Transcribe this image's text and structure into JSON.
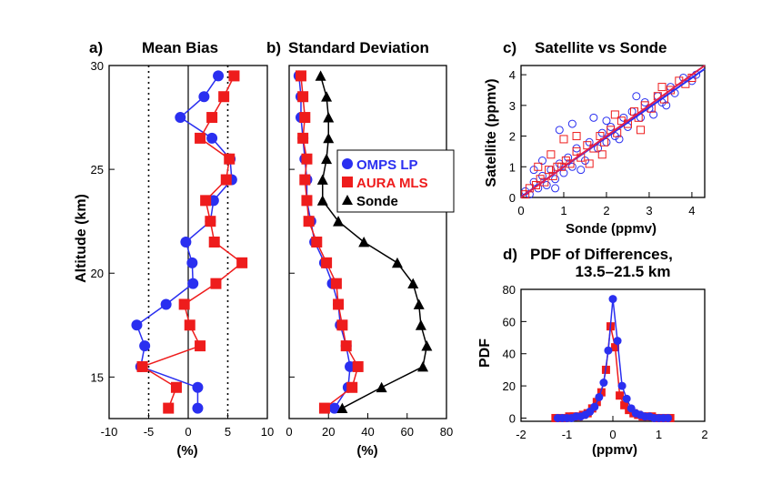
{
  "colors": {
    "omps": "#2a2ff0",
    "mls": "#ee1c1c",
    "sonde": "#000000",
    "fit": "#e0204f"
  },
  "chart_data": [
    {
      "id": "a",
      "type": "line",
      "panel_label": "a)",
      "title": "Mean Bias",
      "xlabel": "(%)",
      "ylabel": "Altitude (km)",
      "xlim": [
        -10,
        10
      ],
      "ylim": [
        13,
        30
      ],
      "xticks": [
        -10,
        -5,
        0,
        5,
        10
      ],
      "yticks": [
        15,
        20,
        25,
        30
      ],
      "vlines": [
        {
          "x": -5,
          "style": "dotted"
        },
        {
          "x": 0,
          "style": "solid"
        },
        {
          "x": 5,
          "style": "dotted"
        }
      ],
      "series": [
        {
          "name": "OMPS LP",
          "key": "omps",
          "marker": "circle",
          "x": [
            1.2,
            1.2,
            -6.0,
            -5.5,
            -6.5,
            -2.8,
            0.6,
            0.5,
            -0.3,
            2.8,
            3.2,
            5.5,
            5.3,
            3.0,
            -1.0,
            2.0,
            3.8
          ],
          "y": [
            13.5,
            14.5,
            15.5,
            16.5,
            17.5,
            18.5,
            19.5,
            20.5,
            21.5,
            22.5,
            23.5,
            24.5,
            25.5,
            26.5,
            27.5,
            28.5,
            29.5
          ]
        },
        {
          "name": "AURA MLS",
          "key": "mls",
          "marker": "square",
          "x": [
            -2.5,
            -1.5,
            -5.8,
            1.5,
            0.2,
            -0.5,
            3.5,
            6.8,
            3.3,
            2.8,
            2.2,
            4.8,
            5.2,
            1.5,
            3.0,
            4.5,
            5.8
          ],
          "y": [
            13.5,
            14.5,
            15.5,
            16.5,
            17.5,
            18.5,
            19.5,
            20.5,
            21.5,
            22.5,
            23.5,
            24.5,
            25.5,
            26.5,
            27.5,
            28.5,
            29.5
          ]
        }
      ]
    },
    {
      "id": "b",
      "type": "line",
      "panel_label": "b)",
      "title": "Standard Deviation",
      "xlabel": "(%)",
      "xlim": [
        0,
        80
      ],
      "ylim": [
        13,
        30
      ],
      "xticks": [
        0,
        20,
        40,
        60,
        80
      ],
      "series": [
        {
          "name": "OMPS LP",
          "key": "omps",
          "marker": "circle",
          "x": [
            23,
            30,
            31,
            29,
            26,
            25,
            22,
            18,
            13,
            11,
            9,
            9,
            8,
            7,
            6,
            6,
            5
          ],
          "y": [
            13.5,
            14.5,
            15.5,
            16.5,
            17.5,
            18.5,
            19.5,
            20.5,
            21.5,
            22.5,
            23.5,
            24.5,
            25.5,
            26.5,
            27.5,
            28.5,
            29.5
          ]
        },
        {
          "name": "AURA MLS",
          "key": "mls",
          "marker": "square",
          "x": [
            18,
            32,
            35,
            29,
            27,
            25,
            24,
            19,
            14,
            10,
            9,
            8,
            9,
            7,
            8,
            7,
            6
          ],
          "y": [
            13.5,
            14.5,
            15.5,
            16.5,
            17.5,
            18.5,
            19.5,
            20.5,
            21.5,
            22.5,
            23.5,
            24.5,
            25.5,
            26.5,
            27.5,
            28.5,
            29.5
          ]
        },
        {
          "name": "Sonde",
          "key": "sonde",
          "marker": "triangle",
          "x": [
            27,
            47,
            68,
            70,
            67,
            66,
            63,
            55,
            38,
            25,
            17,
            17,
            19,
            20,
            20,
            19,
            16
          ],
          "y": [
            13.5,
            14.5,
            15.5,
            16.5,
            17.5,
            18.5,
            19.5,
            20.5,
            21.5,
            22.5,
            23.5,
            24.5,
            25.5,
            26.5,
            27.5,
            28.5,
            29.5
          ]
        }
      ],
      "legend": {
        "position": "right",
        "entries": [
          "OMPS LP",
          "AURA MLS",
          "Sonde"
        ]
      }
    },
    {
      "id": "c",
      "type": "scatter",
      "panel_label": "c)",
      "title": "Satellite vs Sonde",
      "xlabel": "Sonde (ppmv)",
      "ylabel": "Satellite (ppmv)",
      "xlim": [
        0,
        4.3
      ],
      "ylim": [
        0,
        4.3
      ],
      "xticks": [
        0,
        1,
        2,
        3,
        4
      ],
      "yticks": [
        0,
        1,
        2,
        3,
        4
      ],
      "fit_lines": [
        {
          "key": "omps",
          "slope": 0.97,
          "intercept": 0.02
        },
        {
          "key": "fit",
          "slope": 1.0,
          "intercept": 0.0
        }
      ],
      "series": [
        {
          "name": "OMPS LP",
          "key": "omps",
          "marker": "open-circle",
          "x": [
            0.1,
            0.2,
            0.3,
            0.4,
            0.5,
            0.6,
            0.7,
            0.8,
            0.9,
            1.0,
            1.1,
            1.2,
            1.3,
            1.5,
            1.6,
            1.8,
            1.9,
            2.0,
            2.1,
            2.2,
            2.4,
            2.5,
            2.6,
            2.8,
            2.9,
            3.0,
            3.2,
            3.3,
            3.5,
            3.6,
            3.8,
            4.0,
            4.1,
            0.5,
            0.9,
            1.4,
            1.7,
            2.3,
            2.7,
            3.1,
            3.4,
            0.3,
            1.2,
            2.0,
            0.8
          ],
          "y": [
            0.2,
            0.1,
            0.5,
            0.3,
            0.7,
            0.4,
            0.9,
            0.6,
            1.1,
            0.8,
            1.3,
            1.0,
            1.6,
            1.2,
            1.8,
            1.6,
            2.1,
            1.8,
            2.3,
            2.0,
            2.6,
            2.3,
            2.8,
            2.6,
            3.1,
            2.9,
            3.3,
            3.1,
            3.6,
            3.4,
            3.9,
            3.8,
            4.0,
            1.2,
            2.2,
            0.9,
            2.6,
            1.9,
            3.3,
            2.7,
            3.0,
            0.9,
            2.4,
            2.5,
            0.3
          ]
        },
        {
          "name": "AURA MLS",
          "key": "mls",
          "marker": "open-square",
          "x": [
            0.1,
            0.2,
            0.35,
            0.45,
            0.55,
            0.65,
            0.75,
            0.85,
            0.95,
            1.05,
            1.15,
            1.3,
            1.4,
            1.55,
            1.7,
            1.85,
            1.95,
            2.1,
            2.25,
            2.35,
            2.5,
            2.65,
            2.75,
            2.9,
            3.05,
            3.2,
            3.35,
            3.5,
            3.7,
            3.85,
            4.0,
            0.7,
            1.0,
            1.6,
            2.2,
            2.8,
            3.3,
            0.4,
            1.3,
            1.9
          ],
          "y": [
            0.1,
            0.3,
            0.4,
            0.6,
            0.5,
            0.9,
            0.7,
            1.0,
            1.0,
            1.2,
            1.1,
            1.5,
            1.3,
            1.7,
            1.6,
            2.0,
            1.8,
            2.2,
            2.1,
            2.5,
            2.4,
            2.8,
            2.6,
            3.0,
            2.9,
            3.3,
            3.2,
            3.5,
            3.8,
            3.7,
            3.9,
            1.4,
            1.9,
            1.1,
            2.7,
            2.2,
            3.6,
            1.0,
            2.0,
            1.4
          ]
        }
      ]
    },
    {
      "id": "d",
      "type": "line",
      "panel_label": "d)",
      "title": "PDF of Differences,",
      "subtitle": "13.5–21.5 km",
      "xlabel": "(ppmv)",
      "ylabel": "PDF",
      "xlim": [
        -2,
        2
      ],
      "ylim": [
        -2,
        80
      ],
      "xticks": [
        -2,
        -1,
        0,
        1,
        2
      ],
      "yticks": [
        0,
        20,
        40,
        60,
        80
      ],
      "series": [
        {
          "name": "OMPS LP",
          "key": "omps",
          "marker": "circle",
          "x": [
            -1.2,
            -1.1,
            -1.0,
            -0.9,
            -0.8,
            -0.7,
            -0.6,
            -0.5,
            -0.4,
            -0.3,
            -0.2,
            -0.1,
            0.0,
            0.1,
            0.2,
            0.3,
            0.4,
            0.5,
            0.6,
            0.7,
            0.8,
            0.9,
            1.0,
            1.1,
            1.2
          ],
          "y": [
            0,
            0,
            0,
            0,
            1,
            1,
            2,
            4,
            7,
            13,
            22,
            42,
            74,
            48,
            20,
            12,
            6,
            3,
            2,
            1,
            1,
            0,
            0,
            0,
            0
          ]
        },
        {
          "name": "AURA MLS",
          "key": "mls",
          "marker": "square",
          "x": [
            -1.25,
            -1.15,
            -1.05,
            -0.95,
            -0.85,
            -0.75,
            -0.65,
            -0.55,
            -0.45,
            -0.35,
            -0.25,
            -0.15,
            -0.05,
            0.05,
            0.15,
            0.25,
            0.35,
            0.45,
            0.55,
            0.65,
            0.75,
            0.85,
            0.95,
            1.05,
            1.15,
            1.25
          ],
          "y": [
            0,
            0,
            0,
            1,
            1,
            1,
            2,
            3,
            6,
            10,
            16,
            30,
            57,
            44,
            14,
            8,
            5,
            3,
            2,
            1,
            1,
            1,
            0,
            0,
            0,
            0
          ]
        }
      ]
    }
  ]
}
